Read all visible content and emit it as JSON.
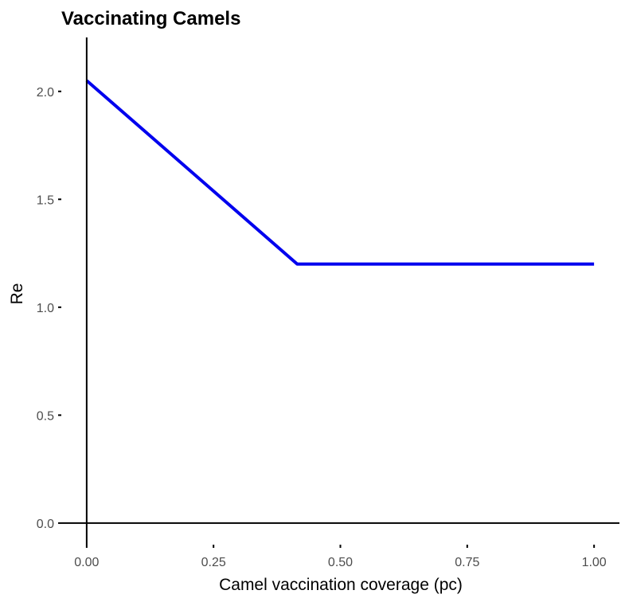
{
  "chart_data": {
    "type": "line",
    "title": "Vaccinating Camels",
    "xlabel": "Camel vaccination coverage (pc)",
    "ylabel": "Re",
    "xlim": [
      -0.05,
      1.05
    ],
    "ylim": [
      -0.1,
      2.25
    ],
    "x_ticks": [
      0.0,
      0.25,
      0.5,
      0.75,
      1.0
    ],
    "x_tick_labels": [
      "0.00",
      "0.25",
      "0.50",
      "0.75",
      "1.00"
    ],
    "y_ticks": [
      0.0,
      0.5,
      1.0,
      1.5,
      2.0
    ],
    "y_tick_labels": [
      "0.0",
      "0.5",
      "1.0",
      "1.5",
      "2.0"
    ],
    "grid": false,
    "series": [
      {
        "color": "#0000ee",
        "x": [
          0.0,
          0.415,
          1.0
        ],
        "y": [
          2.05,
          1.2,
          1.2
        ]
      }
    ]
  }
}
